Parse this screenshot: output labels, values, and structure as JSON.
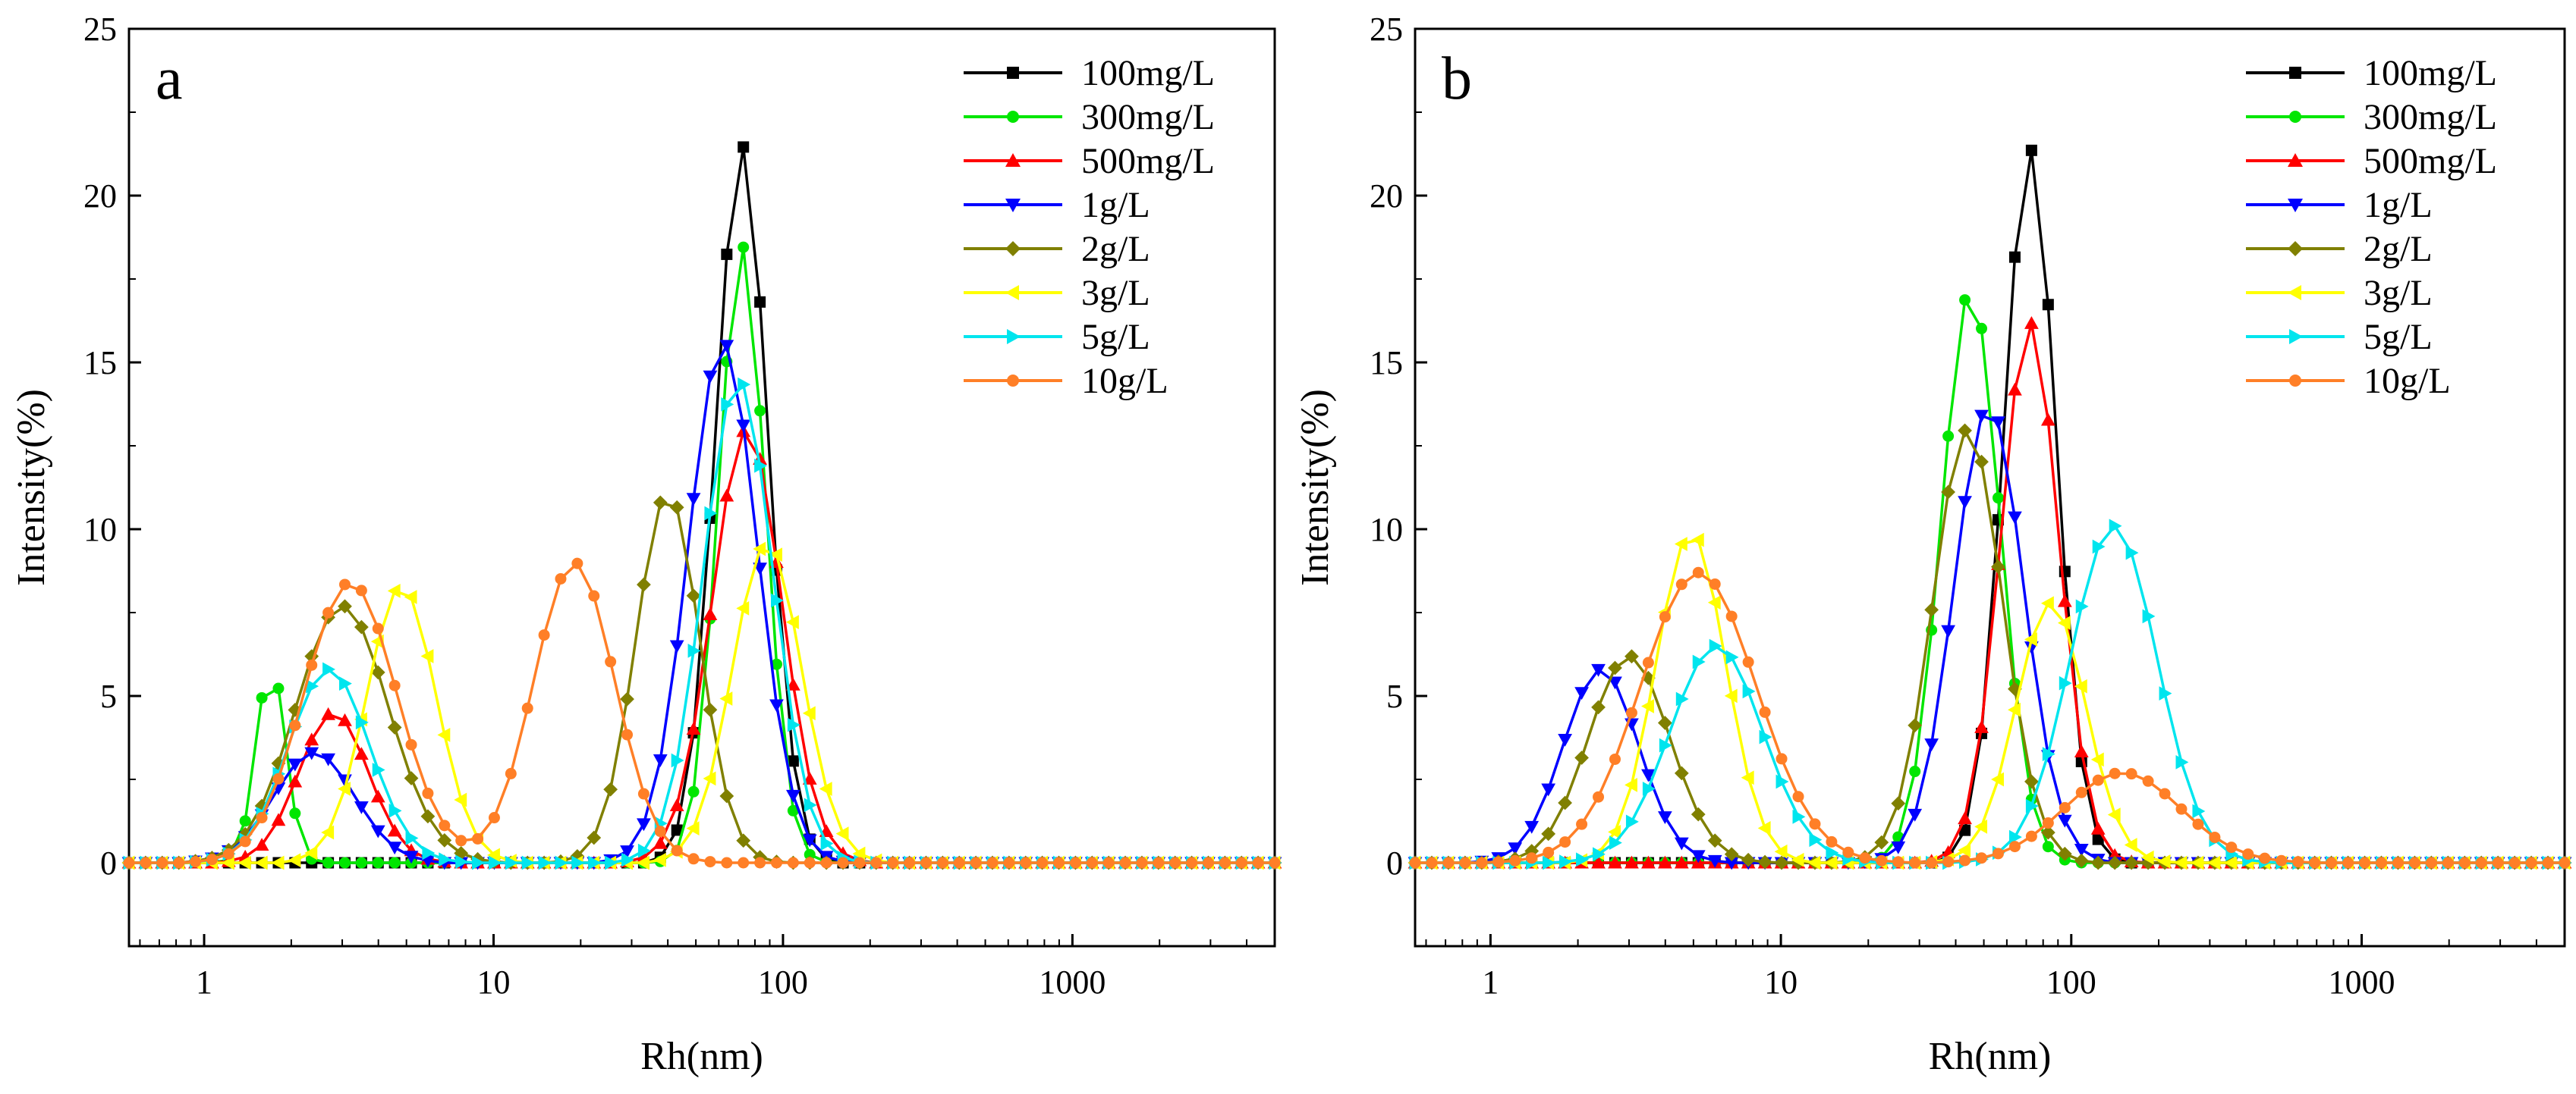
{
  "figure": {
    "description_free": true
  },
  "chart_data": [
    {
      "type": "line",
      "panel_label": "a",
      "xscale": "log",
      "xlim": [
        0.55,
        5000
      ],
      "ylim": [
        -2.5,
        25
      ],
      "xlabel": "Rh(nm)",
      "ylabel": "Intensity(%)",
      "xticks": [
        1,
        10,
        100,
        1000
      ],
      "xtick_labels": [
        "1",
        "10",
        "100",
        "1000"
      ],
      "yticks": [
        0,
        5,
        10,
        15,
        20,
        25
      ],
      "ytick_labels": [
        "0",
        "5",
        "10",
        "15",
        "20",
        "25"
      ],
      "legend_position": "top-right",
      "series": [
        {
          "name": "100mg/L",
          "color": "#000000",
          "marker": "square",
          "peaks": [
            {
              "center": 72,
              "sigma": 0.09,
              "height": 21.5
            }
          ]
        },
        {
          "name": "300mg/L",
          "color": "#00e600",
          "marker": "circle",
          "peaks": [
            {
              "center": 1.7,
              "sigma": 0.05,
              "height": 6.0
            },
            {
              "center": 72,
              "sigma": 0.08,
              "height": 18.5
            }
          ]
        },
        {
          "name": "500mg/L",
          "color": "#ff0000",
          "marker": "triangle-up",
          "peaks": [
            {
              "center": 2.8,
              "sigma": 0.12,
              "height": 4.5
            },
            {
              "center": 75,
              "sigma": 0.12,
              "height": 13.0
            }
          ]
        },
        {
          "name": "1g/L",
          "color": "#0000ff",
          "marker": "triangle-down",
          "peaks": [
            {
              "center": 2.4,
              "sigma": 0.14,
              "height": 3.3
            },
            {
              "center": 62,
              "sigma": 0.12,
              "height": 15.6
            }
          ]
        },
        {
          "name": "2g/L",
          "color": "#808000",
          "marker": "diamond",
          "peaks": [
            {
              "center": 3.0,
              "sigma": 0.16,
              "height": 7.7
            },
            {
              "center": 40,
              "sigma": 0.11,
              "height": 11.1
            }
          ]
        },
        {
          "name": "3g/L",
          "color": "#ffff00",
          "marker": "triangle-left",
          "peaks": [
            {
              "center": 4.8,
              "sigma": 0.12,
              "height": 8.3
            },
            {
              "center": 88,
              "sigma": 0.12,
              "height": 9.6
            }
          ]
        },
        {
          "name": "5g/L",
          "color": "#00e5ee",
          "marker": "triangle-right",
          "peaks": [
            {
              "center": 2.7,
              "sigma": 0.14,
              "height": 5.8
            },
            {
              "center": 70,
              "sigma": 0.12,
              "height": 14.5
            }
          ]
        },
        {
          "name": "10g/L",
          "color": "#ff7f27",
          "marker": "circle",
          "peaks": [
            {
              "center": 3.2,
              "sigma": 0.16,
              "height": 8.4
            },
            {
              "center": 19,
              "sigma": 0.14,
              "height": 9.0
            }
          ]
        }
      ]
    },
    {
      "type": "line",
      "panel_label": "b",
      "xscale": "log",
      "xlim": [
        0.55,
        5000
      ],
      "ylim": [
        -2.5,
        25
      ],
      "xlabel": "Rh(nm)",
      "ylabel": "Intensity(%)",
      "xticks": [
        1,
        10,
        100,
        1000
      ],
      "xtick_labels": [
        "1",
        "10",
        "100",
        "1000"
      ],
      "yticks": [
        0,
        5,
        10,
        15,
        20,
        25
      ],
      "ytick_labels": [
        "0",
        "5",
        "10",
        "15",
        "20",
        "25"
      ],
      "legend_position": "top-right",
      "series": [
        {
          "name": "100mg/L",
          "color": "#000000",
          "marker": "square",
          "peaks": [
            {
              "center": 72,
              "sigma": 0.09,
              "height": 21.4
            }
          ]
        },
        {
          "name": "300mg/L",
          "color": "#00e600",
          "marker": "circle",
          "peaks": [
            {
              "center": 45,
              "sigma": 0.1,
              "height": 17.2
            }
          ]
        },
        {
          "name": "500mg/L",
          "color": "#ff0000",
          "marker": "triangle-up",
          "peaks": [
            {
              "center": 72,
              "sigma": 0.1,
              "height": 16.2
            }
          ]
        },
        {
          "name": "1g/L",
          "color": "#0000ff",
          "marker": "triangle-down",
          "peaks": [
            {
              "center": 2.4,
              "sigma": 0.13,
              "height": 5.8
            },
            {
              "center": 52,
              "sigma": 0.12,
              "height": 13.7
            }
          ]
        },
        {
          "name": "2g/L",
          "color": "#808000",
          "marker": "diamond",
          "peaks": [
            {
              "center": 3.0,
              "sigma": 0.14,
              "height": 6.2
            },
            {
              "center": 44,
              "sigma": 0.12,
              "height": 13.0
            }
          ]
        },
        {
          "name": "3g/L",
          "color": "#ffff00",
          "marker": "triangle-left",
          "peaks": [
            {
              "center": 4.9,
              "sigma": 0.12,
              "height": 9.9
            },
            {
              "center": 85,
              "sigma": 0.12,
              "height": 7.8
            }
          ]
        },
        {
          "name": "5g/L",
          "color": "#00e5ee",
          "marker": "triangle-right",
          "peaks": [
            {
              "center": 6.0,
              "sigma": 0.16,
              "height": 6.5
            },
            {
              "center": 140,
              "sigma": 0.15,
              "height": 10.1
            }
          ]
        },
        {
          "name": "10g/L",
          "color": "#ff7f27",
          "marker": "circle",
          "peaks": [
            {
              "center": 5.2,
              "sigma": 0.2,
              "height": 8.7
            },
            {
              "center": 150,
              "sigma": 0.2,
              "height": 2.7
            }
          ]
        }
      ]
    }
  ]
}
